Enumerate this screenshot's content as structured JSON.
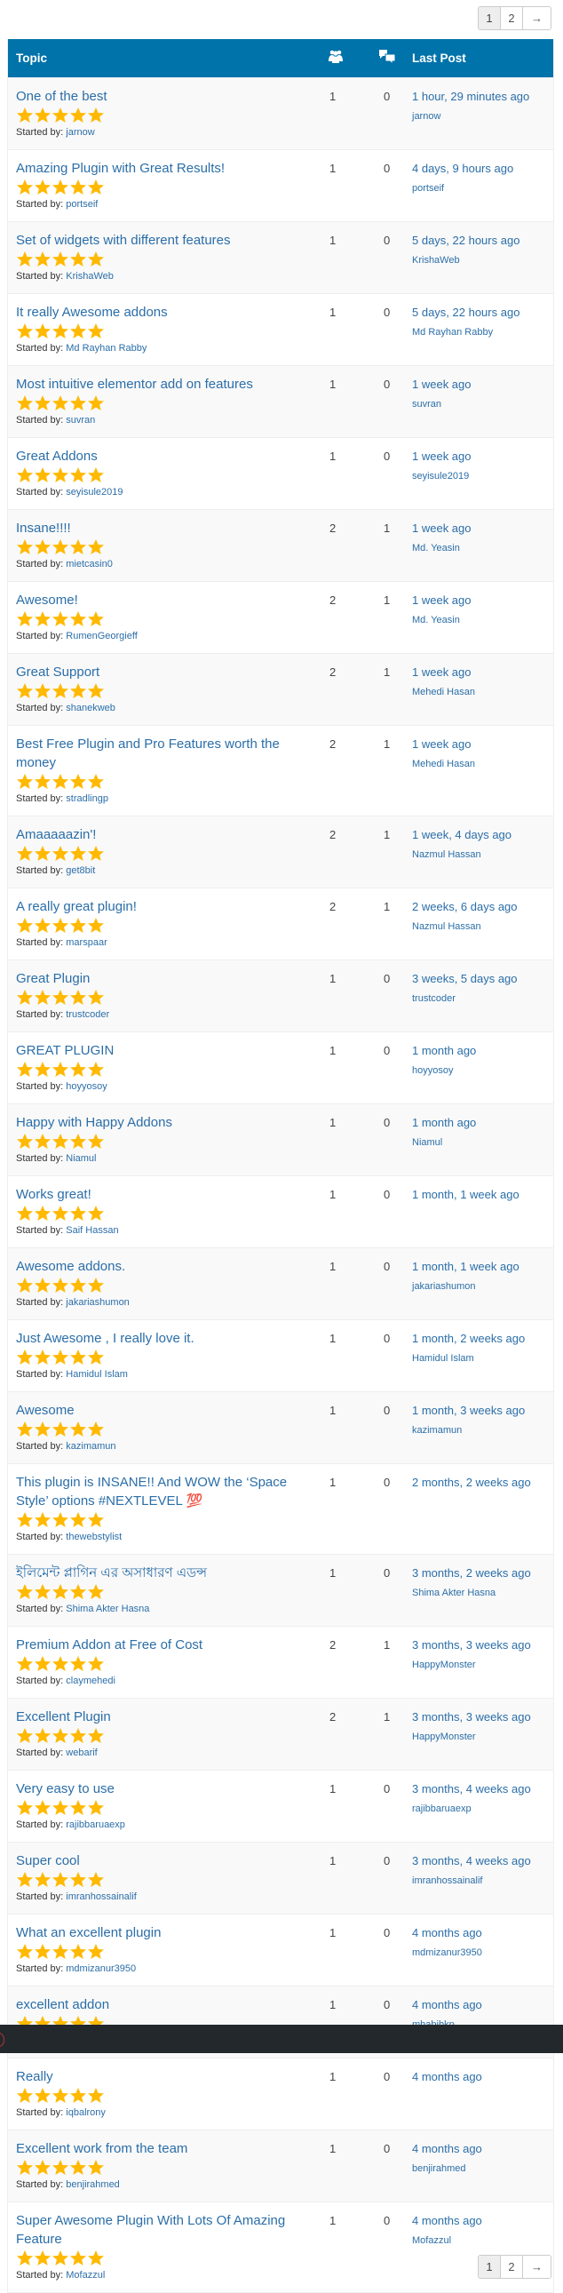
{
  "pagination": {
    "pages": [
      "1",
      "2"
    ],
    "current": "1",
    "next_label": "→"
  },
  "header": {
    "topic": "Topic",
    "voices_icon": "people-group-icon",
    "replies_icon": "speech-bubbles-icon",
    "last_post": "Last Post"
  },
  "started_by_label": "Started by:",
  "colors": {
    "header_bg": "#0073aa",
    "link": "#2b6ea8",
    "star": "#ffb900",
    "overlay": "#23282d"
  },
  "topics": [
    {
      "title": "One of the best",
      "rating": 5,
      "voices": "1",
      "replies": "0",
      "time": "1 hour, 29 minutes ago",
      "author": "jarnow",
      "started_by": "jarnow"
    },
    {
      "title": "Amazing Plugin with Great Results!",
      "rating": 5,
      "voices": "1",
      "replies": "0",
      "time": "4 days, 9 hours ago",
      "author": "portseif",
      "started_by": "portseif"
    },
    {
      "title": "Set of widgets with different features",
      "rating": 5,
      "voices": "1",
      "replies": "0",
      "time": "5 days, 22 hours ago",
      "author": "KrishaWeb",
      "started_by": "KrishaWeb"
    },
    {
      "title": "It really Awesome addons",
      "rating": 5,
      "voices": "1",
      "replies": "0",
      "time": "5 days, 22 hours ago",
      "author": "Md Rayhan Rabby",
      "started_by": "Md Rayhan Rabby"
    },
    {
      "title": "Most intuitive elementor add on features",
      "rating": 5,
      "voices": "1",
      "replies": "0",
      "time": "1 week ago",
      "author": "suvran",
      "started_by": "suvran"
    },
    {
      "title": "Great Addons",
      "rating": 5,
      "voices": "1",
      "replies": "0",
      "time": "1 week ago",
      "author": "seyisule2019",
      "started_by": "seyisule2019"
    },
    {
      "title": "Insane!!!!",
      "rating": 5,
      "voices": "2",
      "replies": "1",
      "time": "1 week ago",
      "author": "Md. Yeasin",
      "started_by": "mietcasin0"
    },
    {
      "title": "Awesome!",
      "rating": 5,
      "voices": "2",
      "replies": "1",
      "time": "1 week ago",
      "author": "Md. Yeasin",
      "started_by": "RumenGeorgieff"
    },
    {
      "title": "Great Support",
      "rating": 5,
      "voices": "2",
      "replies": "1",
      "time": "1 week ago",
      "author": "Mehedi Hasan",
      "started_by": "shanekweb"
    },
    {
      "title": "Best Free Plugin and Pro Features worth the money",
      "rating": 5,
      "voices": "2",
      "replies": "1",
      "time": "1 week ago",
      "author": "Mehedi Hasan",
      "started_by": "stradlingp"
    },
    {
      "title": "Amaaaaazin'!",
      "rating": 5,
      "voices": "2",
      "replies": "1",
      "time": "1 week, 4 days ago",
      "author": "Nazmul Hassan",
      "started_by": "get8bit"
    },
    {
      "title": "A really great plugin!",
      "rating": 5,
      "voices": "2",
      "replies": "1",
      "time": "2 weeks, 6 days ago",
      "author": "Nazmul Hassan",
      "started_by": "marspaar"
    },
    {
      "title": "Great Plugin",
      "rating": 5,
      "voices": "1",
      "replies": "0",
      "time": "3 weeks, 5 days ago",
      "author": "trustcoder",
      "started_by": "trustcoder"
    },
    {
      "title": "GREAT PLUGIN",
      "rating": 5,
      "voices": "1",
      "replies": "0",
      "time": "1 month ago",
      "author": "hoyyosoy",
      "started_by": "hoyyosoy"
    },
    {
      "title": "Happy with Happy Addons",
      "rating": 5,
      "voices": "1",
      "replies": "0",
      "time": "1 month ago",
      "author": "Niamul",
      "started_by": "Niamul"
    },
    {
      "title": "Works great!",
      "rating": 5,
      "voices": "1",
      "replies": "0",
      "time": "1 month, 1 week ago",
      "author": "",
      "started_by": "Saif Hassan"
    },
    {
      "title": "Awesome addons.",
      "rating": 5,
      "voices": "1",
      "replies": "0",
      "time": "1 month, 1 week ago",
      "author": "jakariashumon",
      "started_by": "jakariashumon"
    },
    {
      "title": "Just Awesome , I really love it.",
      "rating": 5,
      "voices": "1",
      "replies": "0",
      "time": "1 month, 2 weeks ago",
      "author": "Hamidul Islam",
      "started_by": "Hamidul Islam"
    },
    {
      "title": "Awesome",
      "rating": 5,
      "voices": "1",
      "replies": "0",
      "time": "1 month, 3 weeks ago",
      "author": "kazimamun",
      "started_by": "kazimamun"
    },
    {
      "title": "This plugin is INSANE!! And WOW the ‘Space Style’ options #NEXTLEVEL 💯",
      "rating": 5,
      "voices": "1",
      "replies": "0",
      "time": "2 months, 2 weeks ago",
      "author": "",
      "started_by": "thewebstylist"
    },
    {
      "title": "ইলিমেন্ট প্লাগিন এর অসাধারণ এডন্স",
      "rating": 5,
      "voices": "1",
      "replies": "0",
      "time": "3 months, 2 weeks ago",
      "author": "Shima Akter Hasna",
      "started_by": "Shima Akter Hasna"
    },
    {
      "title": "Premium Addon at Free of Cost",
      "rating": 5,
      "voices": "2",
      "replies": "1",
      "time": "3 months, 3 weeks ago",
      "author": "HappyMonster",
      "started_by": "claymehedi"
    },
    {
      "title": "Excellent Plugin",
      "rating": 5,
      "voices": "2",
      "replies": "1",
      "time": "3 months, 3 weeks ago",
      "author": "HappyMonster",
      "started_by": "webarif"
    },
    {
      "title": "Very easy to use",
      "rating": 5,
      "voices": "1",
      "replies": "0",
      "time": "3 months, 4 weeks ago",
      "author": "rajibbaruaexp",
      "started_by": "rajibbaruaexp"
    },
    {
      "title": "Super cool",
      "rating": 5,
      "voices": "1",
      "replies": "0",
      "time": "3 months, 4 weeks ago",
      "author": "imranhossainalif",
      "started_by": "imranhossainalif"
    },
    {
      "title": "What an excellent plugin",
      "rating": 5,
      "voices": "1",
      "replies": "0",
      "time": "4 months ago",
      "author": "mdmizanur3950",
      "started_by": "mdmizanur3950"
    },
    {
      "title": "excellent addon",
      "rating": 5,
      "voices": "1",
      "replies": "0",
      "time": "4 months ago",
      "author": "mhabibkp",
      "started_by": "mhabibkp"
    },
    {
      "title": "Really",
      "rating": 5,
      "voices": "1",
      "replies": "0",
      "time": "4 months ago",
      "author": "",
      "started_by": "iqbalrony"
    },
    {
      "title": "Excellent work from the team",
      "rating": 5,
      "voices": "1",
      "replies": "0",
      "time": "4 months ago",
      "author": "benjirahmed",
      "started_by": "benjirahmed"
    },
    {
      "title": "Super Awesome Plugin With Lots Of Amazing Feature",
      "rating": 5,
      "voices": "1",
      "replies": "0",
      "time": "4 months ago",
      "author": "Mofazzul",
      "started_by": "Mofazzul"
    }
  ]
}
